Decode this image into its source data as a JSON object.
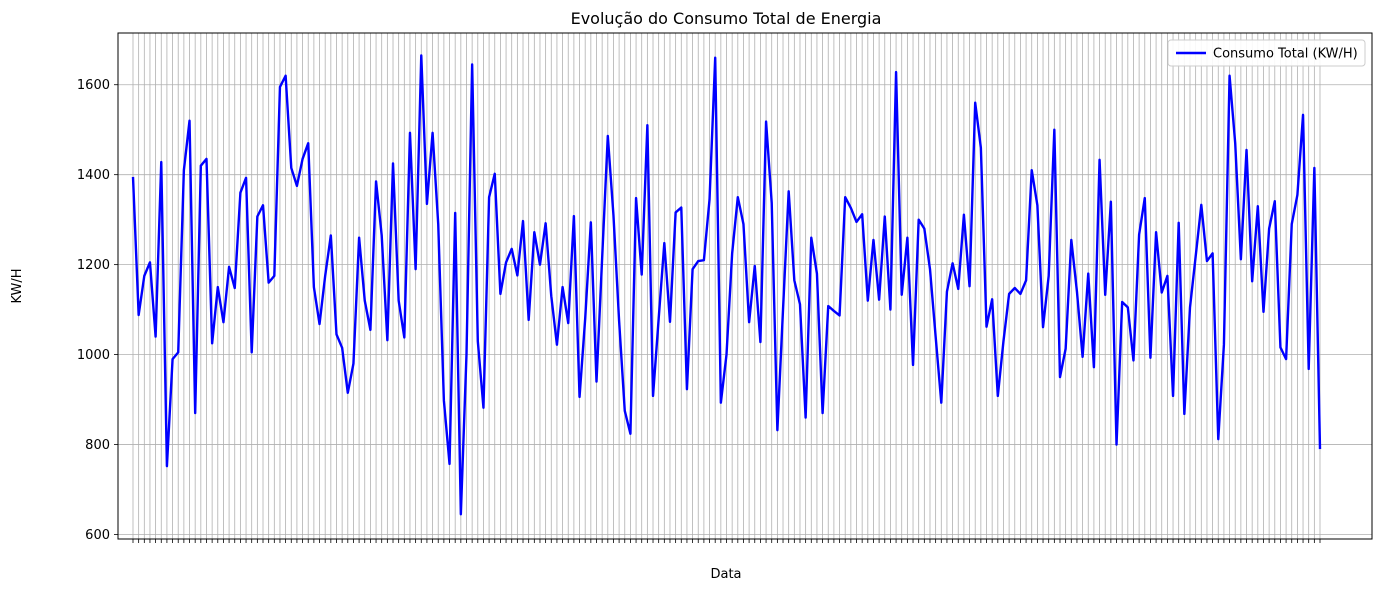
{
  "chart_data": {
    "type": "line",
    "title": "Evolução do Consumo Total de Energia",
    "xlabel": "Data",
    "ylabel": "KW/H",
    "ylim": [
      590,
      1715
    ],
    "yticks": [
      600,
      800,
      1000,
      1200,
      1400,
      1600
    ],
    "grid": true,
    "legend_position": "top-right",
    "series": [
      {
        "name": "Consumo Total (KW/H)",
        "color": "#0000ff",
        "values": [
          1395,
          1088,
          1175,
          1205,
          1040,
          1428,
          752,
          990,
          1005,
          1410,
          1520,
          870,
          1420,
          1435,
          1025,
          1150,
          1072,
          1195,
          1148,
          1360,
          1393,
          1005,
          1307,
          1332,
          1160,
          1175,
          1595,
          1620,
          1415,
          1375,
          1435,
          1470,
          1150,
          1068,
          1175,
          1265,
          1045,
          1015,
          915,
          980,
          1260,
          1120,
          1055,
          1385,
          1265,
          1032,
          1425,
          1120,
          1038,
          1493,
          1190,
          1665,
          1335,
          1493,
          1290,
          898,
          757,
          1315,
          645,
          1000,
          1645,
          1030,
          882,
          1350,
          1402,
          1135,
          1205,
          1235,
          1176,
          1297,
          1077,
          1272,
          1200,
          1292,
          1130,
          1022,
          1150,
          1070,
          1308,
          906,
          1080,
          1294,
          940,
          1215,
          1486,
          1310,
          1075,
          875,
          824,
          1348,
          1178,
          1510,
          908,
          1080,
          1248,
          1073,
          1316,
          1327,
          923,
          1190,
          1208,
          1210,
          1345,
          1660,
          893,
          1000,
          1225,
          1350,
          1290,
          1072,
          1197,
          1028,
          1518,
          1337,
          832,
          1100,
          1363,
          1165,
          1112,
          860,
          1260,
          1180,
          870,
          1108,
          1097,
          1087,
          1350,
          1326,
          1295,
          1312,
          1120,
          1255,
          1122,
          1307,
          1100,
          1628,
          1133,
          1260,
          977,
          1300,
          1280,
          1190,
          1040,
          893,
          1140,
          1203,
          1146,
          1311,
          1152,
          1560,
          1460,
          1062,
          1123,
          908,
          1030,
          1135,
          1148,
          1135,
          1165,
          1410,
          1332,
          1061,
          1175,
          1500,
          950,
          1013,
          1255,
          1140,
          995,
          1180,
          972,
          1433,
          1133,
          1340,
          800,
          1117,
          1105,
          987,
          1267,
          1348,
          993,
          1272,
          1138,
          1175,
          908,
          1293,
          868,
          1105,
          1218,
          1333,
          1208,
          1225,
          812,
          1022,
          1620,
          1470,
          1212,
          1455,
          1163,
          1330,
          1095,
          1280,
          1341,
          1016,
          990,
          1290,
          1355,
          1533,
          968,
          1415,
          790
        ]
      }
    ]
  }
}
